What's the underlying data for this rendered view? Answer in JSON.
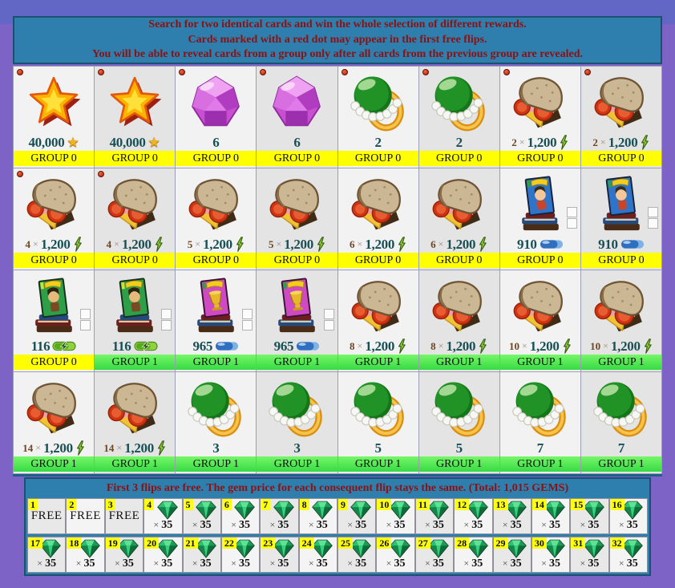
{
  "header": {
    "line1": "Search for two identical cards and win the whole selection of different rewards.",
    "line2": "Cards marked with a red dot may appear in the first free flips.",
    "line3": "You will be able to reveal cards from a group only after all cards from the previous group are revealed."
  },
  "labels": {
    "times": "×"
  },
  "colors": {
    "panel_teal": "#2e7fae",
    "panel_border": "#1b5070",
    "header_text_red": "#8e1111",
    "group0_yellow": "#ffff00",
    "group1_green": "#4ce24c",
    "value_teal": "#174f54",
    "background_purple": "#7d63c6",
    "top_strip_purple": "#6267c6",
    "gem_green": "#1fae5e"
  },
  "cards": [
    {
      "icon": "star",
      "value": "40,000",
      "suffix": "star",
      "group": "GROUP 0",
      "g": 0,
      "dot": true
    },
    {
      "icon": "star",
      "value": "40,000",
      "suffix": "star",
      "group": "GROUP 0",
      "g": 0,
      "dot": true
    },
    {
      "icon": "gem-purple",
      "value": "6",
      "group": "GROUP 0",
      "g": 0,
      "dot": true
    },
    {
      "icon": "gem-purple",
      "value": "6",
      "group": "GROUP 0",
      "g": 0,
      "dot": true
    },
    {
      "icon": "pearl-ring",
      "value": "2",
      "group": "GROUP 0",
      "g": 0,
      "dot": true
    },
    {
      "icon": "pearl-ring",
      "value": "2",
      "group": "GROUP 0",
      "g": 0,
      "dot": true
    },
    {
      "icon": "sandwich",
      "mult": "2",
      "value": "1,200",
      "suffix": "bolt",
      "group": "GROUP 0",
      "g": 0,
      "dot": true
    },
    {
      "icon": "sandwich",
      "mult": "2",
      "value": "1,200",
      "suffix": "bolt",
      "group": "GROUP 0",
      "g": 0,
      "dot": true
    },
    {
      "icon": "sandwich",
      "mult": "4",
      "value": "1,200",
      "suffix": "bolt",
      "group": "GROUP 0",
      "g": 0,
      "dot": true
    },
    {
      "icon": "sandwich",
      "mult": "4",
      "value": "1,200",
      "suffix": "bolt",
      "group": "GROUP 0",
      "g": 0,
      "dot": true
    },
    {
      "icon": "sandwich",
      "mult": "5",
      "value": "1,200",
      "suffix": "bolt",
      "group": "GROUP 0",
      "g": 0
    },
    {
      "icon": "sandwich",
      "mult": "5",
      "value": "1,200",
      "suffix": "bolt",
      "group": "GROUP 0",
      "g": 0
    },
    {
      "icon": "sandwich",
      "mult": "6",
      "value": "1,200",
      "suffix": "bolt",
      "group": "GROUP 0",
      "g": 0
    },
    {
      "icon": "sandwich",
      "mult": "6",
      "value": "1,200",
      "suffix": "bolt",
      "group": "GROUP 0",
      "g": 0
    },
    {
      "icon": "comic-blue",
      "value": "910",
      "suffix": "pill-blue",
      "group": "GROUP 0",
      "g": 0,
      "boxes": true
    },
    {
      "icon": "comic-blue",
      "value": "910",
      "suffix": "pill-blue",
      "group": "GROUP 0",
      "g": 0,
      "boxes": true
    },
    {
      "icon": "comic-green",
      "value": "116",
      "suffix": "pill-green",
      "group": "GROUP 0",
      "g": 0,
      "boxes": true
    },
    {
      "icon": "comic-green",
      "value": "116",
      "suffix": "pill-green",
      "group": "GROUP 1",
      "g": 1,
      "boxes": true
    },
    {
      "icon": "comic-pink",
      "value": "965",
      "suffix": "pill-blue",
      "group": "GROUP 1",
      "g": 1,
      "boxes": true
    },
    {
      "icon": "comic-pink",
      "value": "965",
      "suffix": "pill-blue",
      "group": "GROUP 1",
      "g": 1,
      "boxes": true
    },
    {
      "icon": "sandwich",
      "mult": "8",
      "value": "1,200",
      "suffix": "bolt",
      "group": "GROUP 1",
      "g": 1
    },
    {
      "icon": "sandwich",
      "mult": "8",
      "value": "1,200",
      "suffix": "bolt",
      "group": "GROUP 1",
      "g": 1
    },
    {
      "icon": "sandwich",
      "mult": "10",
      "value": "1,200",
      "suffix": "bolt",
      "group": "GROUP 1",
      "g": 1
    },
    {
      "icon": "sandwich",
      "mult": "10",
      "value": "1,200",
      "suffix": "bolt",
      "group": "GROUP 1",
      "g": 1
    },
    {
      "icon": "sandwich",
      "mult": "14",
      "value": "1,200",
      "suffix": "bolt",
      "group": "GROUP 1",
      "g": 1
    },
    {
      "icon": "sandwich",
      "mult": "14",
      "value": "1,200",
      "suffix": "bolt",
      "group": "GROUP 1",
      "g": 1
    },
    {
      "icon": "pearl-ring",
      "value": "3",
      "group": "GROUP 1",
      "g": 1
    },
    {
      "icon": "pearl-ring",
      "value": "3",
      "group": "GROUP 1",
      "g": 1
    },
    {
      "icon": "pearl-ring",
      "value": "5",
      "group": "GROUP 1",
      "g": 1
    },
    {
      "icon": "pearl-ring",
      "value": "5",
      "group": "GROUP 1",
      "g": 1
    },
    {
      "icon": "pearl-ring",
      "value": "7",
      "group": "GROUP 1",
      "g": 1
    },
    {
      "icon": "pearl-ring",
      "value": "7",
      "group": "GROUP 1",
      "g": 1
    }
  ],
  "price_panel": {
    "title": "First 3 flips are free. The gem price for each consequent flip stays the same. (Total: 1,015 GEMS)",
    "cells": [
      {
        "n": "1",
        "label": "FREE"
      },
      {
        "n": "2",
        "label": "FREE"
      },
      {
        "n": "3",
        "label": "FREE"
      },
      {
        "n": "4",
        "times": "×",
        "value": "35"
      },
      {
        "n": "5",
        "times": "×",
        "value": "35"
      },
      {
        "n": "6",
        "times": "×",
        "value": "35"
      },
      {
        "n": "7",
        "times": "×",
        "value": "35"
      },
      {
        "n": "8",
        "times": "×",
        "value": "35"
      },
      {
        "n": "9",
        "times": "×",
        "value": "35"
      },
      {
        "n": "10",
        "times": "×",
        "value": "35"
      },
      {
        "n": "11",
        "times": "×",
        "value": "35"
      },
      {
        "n": "12",
        "times": "×",
        "value": "35"
      },
      {
        "n": "13",
        "times": "×",
        "value": "35"
      },
      {
        "n": "14",
        "times": "×",
        "value": "35"
      },
      {
        "n": "15",
        "times": "×",
        "value": "35"
      },
      {
        "n": "16",
        "times": "×",
        "value": "35"
      },
      {
        "n": "17",
        "times": "×",
        "value": "35"
      },
      {
        "n": "18",
        "times": "×",
        "value": "35"
      },
      {
        "n": "19",
        "times": "×",
        "value": "35"
      },
      {
        "n": "20",
        "times": "×",
        "value": "35"
      },
      {
        "n": "21",
        "times": "×",
        "value": "35"
      },
      {
        "n": "22",
        "times": "×",
        "value": "35"
      },
      {
        "n": "23",
        "times": "×",
        "value": "35"
      },
      {
        "n": "24",
        "times": "×",
        "value": "35"
      },
      {
        "n": "25",
        "times": "×",
        "value": "35"
      },
      {
        "n": "26",
        "times": "×",
        "value": "35"
      },
      {
        "n": "27",
        "times": "×",
        "value": "35"
      },
      {
        "n": "28",
        "times": "×",
        "value": "35"
      },
      {
        "n": "29",
        "times": "×",
        "value": "35"
      },
      {
        "n": "30",
        "times": "×",
        "value": "35"
      },
      {
        "n": "31",
        "times": "×",
        "value": "35"
      },
      {
        "n": "32",
        "times": "×",
        "value": "35"
      }
    ]
  }
}
